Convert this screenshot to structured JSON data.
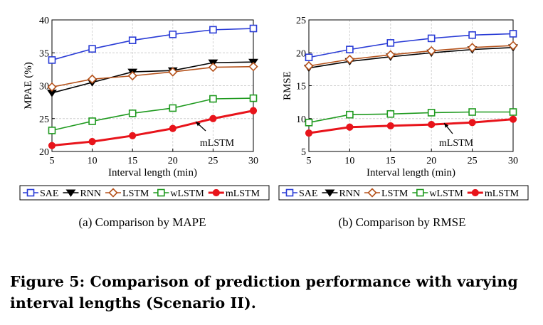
{
  "chart_data": [
    {
      "type": "line",
      "ylabel": "MPAE (%)",
      "xlabel": "Interval length (min)",
      "x": [
        5,
        10,
        15,
        20,
        25,
        30
      ],
      "xlim": [
        5,
        30
      ],
      "ylim": [
        20,
        40
      ],
      "yticks": [
        20,
        25,
        30,
        35,
        40
      ],
      "grid": true,
      "legend_position": "bottom",
      "annotation": "mLSTM",
      "subcaption": "(a)  Comparison by MAPE",
      "series": [
        {
          "name": "SAE",
          "color": "#2a3cd6",
          "marker": "square",
          "values": [
            33.9,
            35.6,
            36.9,
            37.8,
            38.5,
            38.7
          ]
        },
        {
          "name": "RNN",
          "color": "#000000",
          "marker": "triangle-down",
          "values": [
            28.9,
            30.5,
            32.1,
            32.3,
            33.5,
            33.6
          ]
        },
        {
          "name": "LSTM",
          "color": "#b5521b",
          "marker": "diamond",
          "values": [
            29.8,
            31.0,
            31.5,
            32.1,
            32.8,
            32.9
          ]
        },
        {
          "name": "wLSTM",
          "color": "#1f9a1f",
          "marker": "square",
          "values": [
            23.2,
            24.6,
            25.8,
            26.6,
            28.0,
            28.1
          ]
        },
        {
          "name": "mLSTM",
          "color": "#e8141b",
          "marker": "circle",
          "values": [
            20.9,
            21.5,
            22.4,
            23.5,
            25.0,
            26.2
          ]
        }
      ]
    },
    {
      "type": "line",
      "ylabel": "RMSE",
      "xlabel": "Interval length (min)",
      "x": [
        5,
        10,
        15,
        20,
        25,
        30
      ],
      "xlim": [
        5,
        30
      ],
      "ylim": [
        5,
        25
      ],
      "yticks": [
        5,
        10,
        15,
        20,
        25
      ],
      "grid": true,
      "legend_position": "bottom",
      "annotation": "mLSTM",
      "subcaption": "(b)  Comparison by RMSE",
      "series": [
        {
          "name": "SAE",
          "color": "#2a3cd6",
          "marker": "square",
          "values": [
            19.3,
            20.5,
            21.5,
            22.2,
            22.7,
            22.9
          ]
        },
        {
          "name": "RNN",
          "color": "#000000",
          "marker": "triangle-down",
          "values": [
            17.7,
            18.7,
            19.4,
            20.0,
            20.5,
            20.8
          ]
        },
        {
          "name": "LSTM",
          "color": "#b5521b",
          "marker": "diamond",
          "values": [
            18.0,
            19.0,
            19.7,
            20.3,
            20.8,
            21.1
          ]
        },
        {
          "name": "wLSTM",
          "color": "#1f9a1f",
          "marker": "square",
          "values": [
            9.4,
            10.6,
            10.7,
            10.9,
            11.0,
            11.0
          ]
        },
        {
          "name": "mLSTM",
          "color": "#e8141b",
          "marker": "circle",
          "values": [
            7.8,
            8.7,
            8.9,
            9.1,
            9.4,
            9.9
          ]
        }
      ]
    }
  ],
  "figure_caption": "Figure 5: Comparison of prediction performance with varying interval lengths (Scenario II)."
}
